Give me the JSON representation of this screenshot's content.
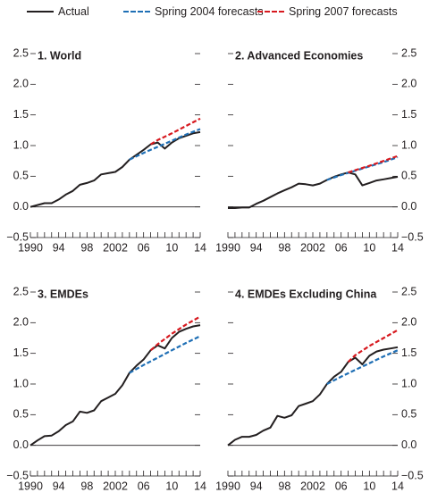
{
  "legend": [
    {
      "label": "Actual",
      "color": "#231f20",
      "dash": "solid"
    },
    {
      "label": "Spring 2004 forecasts",
      "color": "#1f6fb5",
      "dash": "dashed"
    },
    {
      "label": "Spring 2007 forecasts",
      "color": "#d7191f",
      "dash": "dashed"
    }
  ],
  "chart_data": [
    {
      "type": "line",
      "title": "1. World",
      "x_tick_labels": [
        "1990",
        "94",
        "98",
        "2002",
        "06",
        "10",
        "14"
      ],
      "y_tick_labels": [
        "−0.5",
        "0.0",
        "0.5",
        "1.0",
        "1.5",
        "2.0",
        "2.5"
      ],
      "xlim": [
        1990,
        2014
      ],
      "ylim": [
        -0.5,
        2.5
      ],
      "series": [
        {
          "name": "Actual",
          "color": "#231f20",
          "dash": "solid",
          "x": [
            1990,
            1991,
            1992,
            1993,
            1994,
            1995,
            1996,
            1997,
            1998,
            1999,
            2000,
            2001,
            2002,
            2003,
            2004,
            2005,
            2006,
            2007,
            2008,
            2009,
            2010,
            2011,
            2012,
            2013,
            2014
          ],
          "y": [
            0.0,
            0.03,
            0.06,
            0.06,
            0.12,
            0.2,
            0.26,
            0.36,
            0.39,
            0.43,
            0.53,
            0.55,
            0.57,
            0.65,
            0.77,
            0.85,
            0.93,
            1.02,
            1.05,
            0.95,
            1.05,
            1.12,
            1.16,
            1.2,
            1.22
          ]
        },
        {
          "name": "Spring 2004 forecasts",
          "color": "#1f6fb5",
          "dash": "dashed",
          "x": [
            2004,
            2006,
            2008,
            2010,
            2012,
            2014
          ],
          "y": [
            0.77,
            0.88,
            0.98,
            1.08,
            1.18,
            1.27
          ]
        },
        {
          "name": "Spring 2007 forecasts",
          "color": "#d7191f",
          "dash": "dashed",
          "x": [
            2007,
            2008,
            2010,
            2012,
            2014
          ],
          "y": [
            1.02,
            1.09,
            1.2,
            1.32,
            1.44
          ]
        }
      ]
    },
    {
      "type": "line",
      "title": "2. Advanced Economies",
      "x_tick_labels": [
        "1990",
        "94",
        "98",
        "2002",
        "06",
        "10",
        "14"
      ],
      "y_tick_labels": [
        "−0.5",
        "0.0",
        "0.5",
        "1.0",
        "1.5",
        "2.0",
        "2.5"
      ],
      "xlim": [
        1990,
        2014
      ],
      "ylim": [
        -0.5,
        2.5
      ],
      "series": [
        {
          "name": "Actual",
          "color": "#231f20",
          "dash": "solid",
          "x": [
            1990,
            1991,
            1992,
            1993,
            1994,
            1995,
            1996,
            1997,
            1998,
            1999,
            2000,
            2001,
            2002,
            2003,
            2004,
            2005,
            2006,
            2007,
            2008,
            2009,
            2010,
            2011,
            2012,
            2013,
            2014
          ],
          "y": [
            -0.02,
            -0.02,
            -0.01,
            -0.01,
            0.05,
            0.1,
            0.16,
            0.22,
            0.27,
            0.32,
            0.38,
            0.37,
            0.35,
            0.38,
            0.44,
            0.49,
            0.53,
            0.56,
            0.53,
            0.35,
            0.39,
            0.43,
            0.45,
            0.47,
            0.49
          ]
        },
        {
          "name": "Spring 2004 forecasts",
          "color": "#1f6fb5",
          "dash": "dashed",
          "x": [
            2004,
            2006,
            2008,
            2010,
            2012,
            2014
          ],
          "y": [
            0.44,
            0.52,
            0.59,
            0.66,
            0.73,
            0.81
          ]
        },
        {
          "name": "Spring 2007 forecasts",
          "color": "#d7191f",
          "dash": "dashed",
          "x": [
            2007,
            2008,
            2010,
            2012,
            2014
          ],
          "y": [
            0.56,
            0.6,
            0.67,
            0.75,
            0.83
          ]
        }
      ]
    },
    {
      "type": "line",
      "title": "3. EMDEs",
      "x_tick_labels": [
        "1990",
        "94",
        "98",
        "2002",
        "06",
        "10",
        "14"
      ],
      "y_tick_labels": [
        "−0.5",
        "0.0",
        "0.5",
        "1.0",
        "1.5",
        "2.0",
        "2.5"
      ],
      "xlim": [
        1990,
        2014
      ],
      "ylim": [
        -0.5,
        2.5
      ],
      "series": [
        {
          "name": "Actual",
          "color": "#231f20",
          "dash": "solid",
          "x": [
            1990,
            1991,
            1992,
            1993,
            1994,
            1995,
            1996,
            1997,
            1998,
            1999,
            2000,
            2001,
            2002,
            2003,
            2004,
            2005,
            2006,
            2007,
            2008,
            2009,
            2010,
            2011,
            2012,
            2013,
            2014
          ],
          "y": [
            0.0,
            0.08,
            0.15,
            0.16,
            0.23,
            0.33,
            0.39,
            0.55,
            0.53,
            0.57,
            0.72,
            0.78,
            0.84,
            0.98,
            1.18,
            1.3,
            1.4,
            1.55,
            1.63,
            1.58,
            1.75,
            1.85,
            1.9,
            1.94,
            1.96
          ]
        },
        {
          "name": "Spring 2004 forecasts",
          "color": "#1f6fb5",
          "dash": "dashed",
          "x": [
            2004,
            2006,
            2008,
            2010,
            2012,
            2014
          ],
          "y": [
            1.18,
            1.31,
            1.43,
            1.55,
            1.67,
            1.78
          ]
        },
        {
          "name": "Spring 2007 forecasts",
          "color": "#d7191f",
          "dash": "dashed",
          "x": [
            2007,
            2008,
            2010,
            2012,
            2014
          ],
          "y": [
            1.55,
            1.65,
            1.82,
            1.97,
            2.1
          ]
        }
      ]
    },
    {
      "type": "line",
      "title": "4. EMDEs Excluding China",
      "x_tick_labels": [
        "1990",
        "94",
        "98",
        "2002",
        "06",
        "10",
        "14"
      ],
      "y_tick_labels": [
        "−0.5",
        "0.0",
        "0.5",
        "1.0",
        "1.5",
        "2.0",
        "2.5"
      ],
      "xlim": [
        1990,
        2014
      ],
      "ylim": [
        -0.5,
        2.5
      ],
      "series": [
        {
          "name": "Actual",
          "color": "#231f20",
          "dash": "solid",
          "x": [
            1990,
            1991,
            1992,
            1993,
            1994,
            1995,
            1996,
            1997,
            1998,
            1999,
            2000,
            2001,
            2002,
            2003,
            2004,
            2005,
            2006,
            2007,
            2008,
            2009,
            2010,
            2011,
            2012,
            2013,
            2014
          ],
          "y": [
            0.0,
            0.09,
            0.14,
            0.14,
            0.17,
            0.24,
            0.29,
            0.48,
            0.45,
            0.49,
            0.64,
            0.68,
            0.72,
            0.83,
            1.0,
            1.12,
            1.2,
            1.36,
            1.43,
            1.32,
            1.46,
            1.53,
            1.56,
            1.58,
            1.6
          ]
        },
        {
          "name": "Spring 2004 forecasts",
          "color": "#1f6fb5",
          "dash": "dashed",
          "x": [
            2004,
            2006,
            2008,
            2010,
            2012,
            2014
          ],
          "y": [
            1.0,
            1.12,
            1.23,
            1.34,
            1.45,
            1.55
          ]
        },
        {
          "name": "Spring 2007 forecasts",
          "color": "#d7191f",
          "dash": "dashed",
          "x": [
            2007,
            2008,
            2010,
            2012,
            2014
          ],
          "y": [
            1.36,
            1.47,
            1.62,
            1.75,
            1.88
          ]
        }
      ]
    }
  ]
}
